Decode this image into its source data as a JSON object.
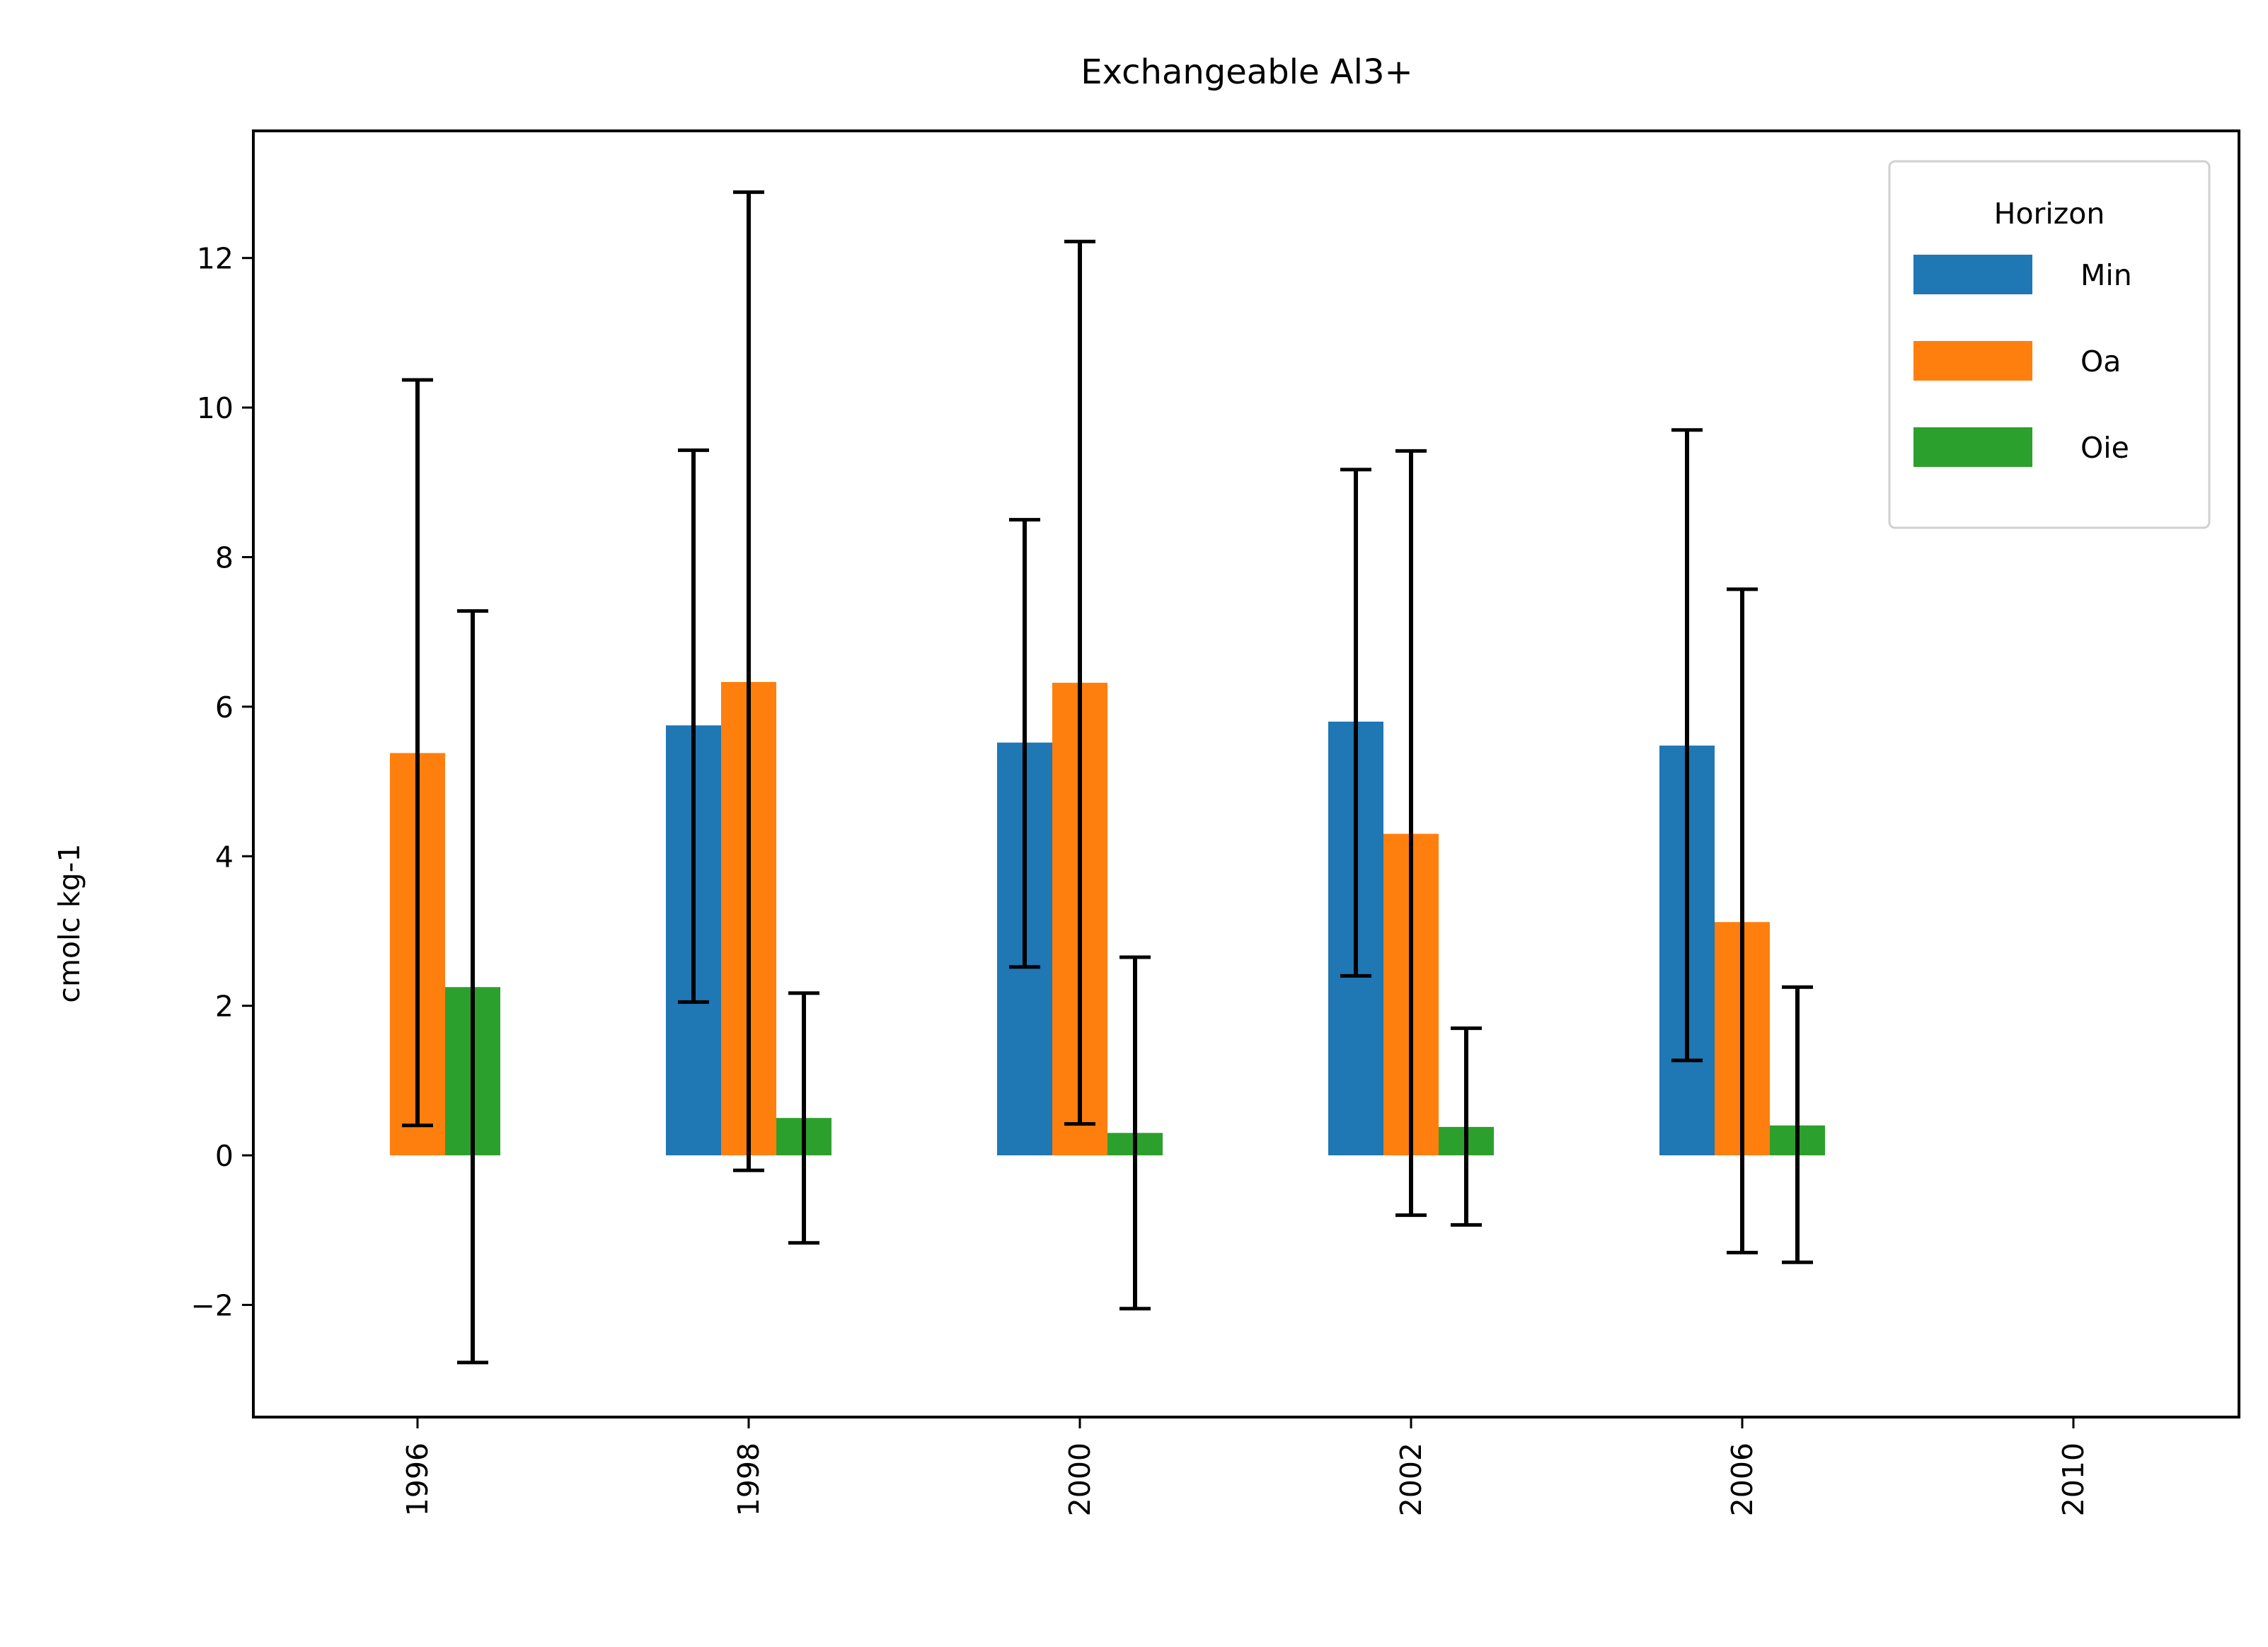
{
  "chart_data": {
    "type": "bar",
    "title": "Exchangeable Al3+",
    "xlabel": "",
    "ylabel": "cmolc kg-1",
    "categories": [
      "1996",
      "1998",
      "2000",
      "2002",
      "2006",
      "2010"
    ],
    "ylim": [
      -3.5,
      13.7
    ],
    "yticks": [
      -2,
      0,
      2,
      4,
      6,
      8,
      10,
      12
    ],
    "ytick_labels": [
      "−2",
      "0",
      "2",
      "4",
      "6",
      "8",
      "10",
      "12"
    ],
    "grid": false,
    "legend": {
      "title": "Horizon",
      "position": "top-right"
    },
    "series": [
      {
        "name": "Min",
        "color": "#1f77b4",
        "values": [
          null,
          5.75,
          5.52,
          5.8,
          5.48,
          null
        ],
        "err_low": [
          null,
          2.05,
          2.52,
          2.4,
          1.27,
          null
        ],
        "err_high": [
          null,
          9.43,
          8.5,
          9.17,
          9.7,
          null
        ]
      },
      {
        "name": "Oa",
        "color": "#ff7f0e",
        "values": [
          5.38,
          6.33,
          6.32,
          4.3,
          3.12,
          null
        ],
        "err_low": [
          0.4,
          -0.2,
          0.42,
          -0.8,
          -1.3,
          null
        ],
        "err_high": [
          10.37,
          12.88,
          12.22,
          9.42,
          7.57,
          null
        ]
      },
      {
        "name": "Oie",
        "color": "#2ca02c",
        "values": [
          2.25,
          0.5,
          0.3,
          0.38,
          0.4,
          null
        ],
        "err_low": [
          -2.77,
          -1.17,
          -2.05,
          -0.93,
          -1.43,
          null
        ],
        "err_high": [
          7.28,
          2.17,
          2.65,
          1.7,
          2.25,
          null
        ]
      }
    ]
  }
}
